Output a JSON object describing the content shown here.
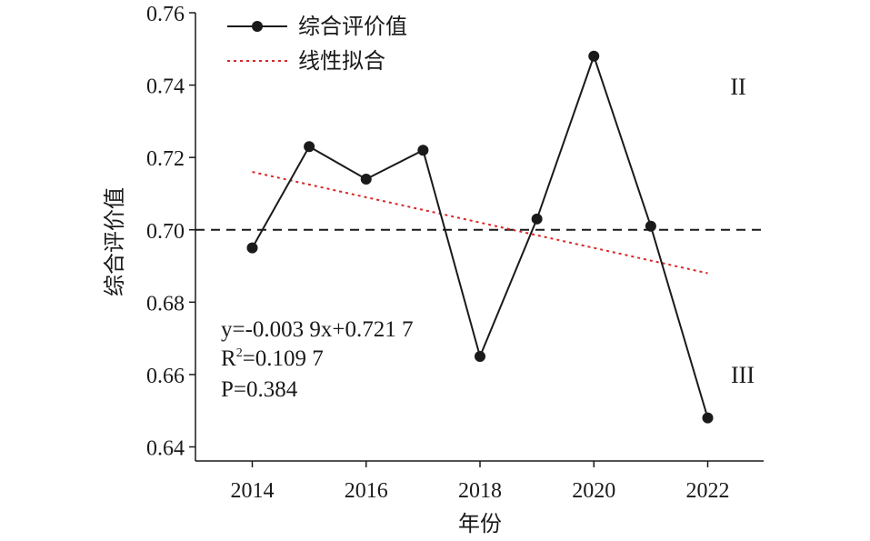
{
  "chart_data": {
    "type": "line",
    "xlabel": "年份",
    "ylabel": "综合评价值",
    "xlim": [
      2013,
      2023
    ],
    "ylim": [
      0.636,
      0.76
    ],
    "x_ticks": [
      2014,
      2016,
      2018,
      2020,
      2022
    ],
    "y_ticks": [
      0.64,
      0.66,
      0.68,
      0.7,
      0.72,
      0.74,
      0.76
    ],
    "series": [
      {
        "name": "综合评价值",
        "style": "solid-with-markers",
        "color": "#1a1a1a",
        "x": [
          2014,
          2015,
          2016,
          2017,
          2018,
          2019,
          2020,
          2021,
          2022
        ],
        "y": [
          0.695,
          0.723,
          0.714,
          0.722,
          0.665,
          0.703,
          0.748,
          0.701,
          0.648
        ]
      },
      {
        "name": "线性拟合",
        "style": "dotted",
        "color": "#d62728",
        "x": [
          2014,
          2022
        ],
        "y": [
          0.716,
          0.688
        ]
      }
    ],
    "reference_line": {
      "y": 0.7,
      "style": "dashed",
      "color": "#1a1a1a"
    },
    "annotations": {
      "equation": "y=-0.003 9x+0.721 7",
      "r_squared_prefix": "R",
      "r_squared_sup": "2",
      "r_squared_value": "=0.109 7",
      "p_value": "P=0.384",
      "region_upper": "II",
      "region_lower": "III"
    },
    "legend": {
      "position": "top-left"
    },
    "grid": false
  }
}
